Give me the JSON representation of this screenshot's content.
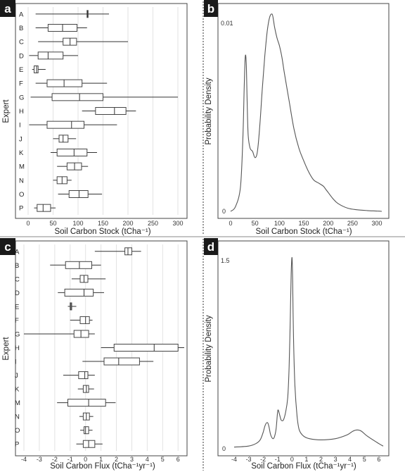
{
  "chart_data": [
    {
      "panel": "a",
      "type": "boxplot",
      "xlabel": "Soil Carbon Stock (tCha⁻¹)",
      "ylabel": "Expert",
      "xlim": [
        0,
        300
      ],
      "xticks": [
        0,
        50,
        100,
        150,
        200,
        250,
        300
      ],
      "experts": [
        {
          "name": "A",
          "min": 15,
          "q1": 118,
          "median": 119,
          "q3": 120,
          "max": 162
        },
        {
          "name": "B",
          "min": 15,
          "q1": 40,
          "median": 69,
          "q3": 98,
          "max": 118
        },
        {
          "name": "C",
          "min": 20,
          "q1": 70,
          "median": 84,
          "q3": 97,
          "max": 200
        },
        {
          "name": "D",
          "min": 2,
          "q1": 20,
          "median": 40,
          "q3": 70,
          "max": 100
        },
        {
          "name": "E",
          "min": 8,
          "q1": 12,
          "median": 17,
          "q3": 20,
          "max": 35
        },
        {
          "name": "F",
          "min": 15,
          "q1": 38,
          "median": 72,
          "q3": 108,
          "max": 158
        },
        {
          "name": "G",
          "min": 5,
          "q1": 48,
          "median": 103,
          "q3": 150,
          "max": 300
        },
        {
          "name": "H",
          "min": 108,
          "q1": 135,
          "median": 173,
          "q3": 196,
          "max": 216
        },
        {
          "name": "I",
          "min": 2,
          "q1": 38,
          "median": 87,
          "q3": 112,
          "max": 178
        },
        {
          "name": "J",
          "min": 50,
          "q1": 62,
          "median": 70,
          "q3": 80,
          "max": 96
        },
        {
          "name": "K",
          "min": 45,
          "q1": 58,
          "median": 92,
          "q3": 118,
          "max": 138
        },
        {
          "name": "M",
          "min": 58,
          "q1": 78,
          "median": 93,
          "q3": 107,
          "max": 120
        },
        {
          "name": "N",
          "min": 50,
          "q1": 58,
          "median": 68,
          "q3": 78,
          "max": 87
        },
        {
          "name": "O",
          "min": 60,
          "q1": 82,
          "median": 102,
          "q3": 120,
          "max": 148
        },
        {
          "name": "P",
          "min": 12,
          "q1": 18,
          "median": 30,
          "q3": 45,
          "max": 55
        }
      ]
    },
    {
      "panel": "b",
      "type": "line",
      "xlabel": "Soil Carbon Stock (tCha⁻¹)",
      "ylabel": "Probability Density",
      "xlim": [
        0,
        310
      ],
      "xticks": [
        0,
        50,
        100,
        150,
        200,
        250,
        300
      ],
      "ylim": [
        0,
        0.0125
      ],
      "ytick_labels": [
        "0",
        "0.01"
      ],
      "x": [
        0,
        10,
        20,
        25,
        28,
        30,
        32,
        34,
        36,
        40,
        45,
        50,
        55,
        60,
        65,
        70,
        75,
        80,
        85,
        88,
        90,
        95,
        100,
        105,
        110,
        120,
        130,
        140,
        150,
        160,
        170,
        180,
        190,
        195,
        200,
        210,
        220,
        240,
        260,
        280,
        300,
        310
      ],
      "y": [
        0,
        0.0003,
        0.0015,
        0.0045,
        0.008,
        0.0098,
        0.0094,
        0.0068,
        0.0048,
        0.004,
        0.0038,
        0.0034,
        0.0038,
        0.0055,
        0.0078,
        0.0098,
        0.0114,
        0.0123,
        0.0125,
        0.0121,
        0.0117,
        0.011,
        0.0105,
        0.0098,
        0.0088,
        0.007,
        0.0052,
        0.004,
        0.0032,
        0.0025,
        0.002,
        0.0018,
        0.0016,
        0.0014,
        0.0012,
        0.0008,
        0.0005,
        0.0002,
        0.0001,
        5e-05,
        2e-05,
        0
      ]
    },
    {
      "panel": "c",
      "type": "boxplot",
      "xlabel": "Soil Carbon Flux (tCha⁻¹yr⁻¹)",
      "ylabel": "Expert",
      "xlim": [
        -4,
        6.4
      ],
      "xticks": [
        -4,
        -3,
        -2,
        -1,
        0,
        1,
        2,
        3,
        4,
        5,
        6
      ],
      "experts": [
        {
          "name": "A",
          "min": 0.6,
          "q1": 2.55,
          "median": 2.75,
          "q3": 3.0,
          "max": 3.6
        },
        {
          "name": "B",
          "min": -2.3,
          "q1": -1.3,
          "median": -0.4,
          "q3": 0.4,
          "max": 1.0
        },
        {
          "name": "C",
          "min": -0.9,
          "q1": -0.35,
          "median": -0.1,
          "q3": 0.15,
          "max": 1.3
        },
        {
          "name": "D",
          "min": -1.8,
          "q1": -1.35,
          "median": -0.1,
          "q3": 0.5,
          "max": 1.2
        },
        {
          "name": "E",
          "min": -1.15,
          "q1": -1.0,
          "median": -0.95,
          "q3": -0.9,
          "max": -0.6
        },
        {
          "name": "F",
          "min": -1.0,
          "q1": -0.35,
          "median": 0.0,
          "q3": 0.25,
          "max": 0.45
        },
        {
          "name": "G",
          "min": -4.0,
          "q1": -0.75,
          "median": -0.3,
          "q3": 0.2,
          "max": 0.6
        },
        {
          "name": "H",
          "min": 1.0,
          "q1": 1.85,
          "median": 4.45,
          "q3": 6.0,
          "max": 6.4
        },
        {
          "name": "I",
          "min": -0.2,
          "q1": 1.2,
          "median": 2.15,
          "q3": 3.5,
          "max": 4.4
        },
        {
          "name": "J",
          "min": -1.45,
          "q1": -0.45,
          "median": -0.05,
          "q3": 0.15,
          "max": 0.6
        },
        {
          "name": "K",
          "min": -0.5,
          "q1": -0.15,
          "median": 0.05,
          "q3": 0.2,
          "max": 0.55
        },
        {
          "name": "M",
          "min": -1.85,
          "q1": -1.15,
          "median": 0.2,
          "q3": 1.3,
          "max": 1.95
        },
        {
          "name": "N",
          "min": -0.4,
          "q1": -0.15,
          "median": 0.05,
          "q3": 0.25,
          "max": 0.5
        },
        {
          "name": "O",
          "min": -0.35,
          "q1": -0.1,
          "median": 0.0,
          "q3": 0.2,
          "max": 0.45
        },
        {
          "name": "P",
          "min": -0.6,
          "q1": -0.15,
          "median": 0.2,
          "q3": 0.6,
          "max": 1.1
        }
      ]
    },
    {
      "panel": "d",
      "type": "line",
      "xlabel": "Soil Carbon Flux (tCha⁻¹yr⁻¹)",
      "ylabel": "Probability Density",
      "xlim": [
        -4,
        6.3
      ],
      "xticks": [
        -4,
        -3,
        -2,
        -1,
        0,
        1,
        2,
        3,
        4,
        5,
        6
      ],
      "ylim": [
        0,
        1.55
      ],
      "ytick_labels": [
        "0",
        "1.5"
      ],
      "x": [
        -4,
        -3,
        -2.5,
        -2.2,
        -2.0,
        -1.85,
        -1.7,
        -1.6,
        -1.5,
        -1.4,
        -1.3,
        -1.2,
        -1.1,
        -1.0,
        -0.95,
        -0.85,
        -0.75,
        -0.6,
        -0.45,
        -0.3,
        -0.2,
        -0.12,
        -0.06,
        0.0,
        0.04,
        0.1,
        0.2,
        0.35,
        0.5,
        0.8,
        1.2,
        2.0,
        3.0,
        3.8,
        4.2,
        4.5,
        4.8,
        5.2,
        6.0,
        6.3
      ],
      "y": [
        0.002,
        0.01,
        0.03,
        0.06,
        0.12,
        0.18,
        0.2,
        0.17,
        0.11,
        0.08,
        0.07,
        0.09,
        0.15,
        0.28,
        0.3,
        0.26,
        0.22,
        0.22,
        0.28,
        0.4,
        0.65,
        1.05,
        1.4,
        1.53,
        1.35,
        0.9,
        0.5,
        0.25,
        0.14,
        0.09,
        0.07,
        0.06,
        0.07,
        0.1,
        0.13,
        0.14,
        0.13,
        0.09,
        0.03,
        0.01
      ]
    }
  ]
}
